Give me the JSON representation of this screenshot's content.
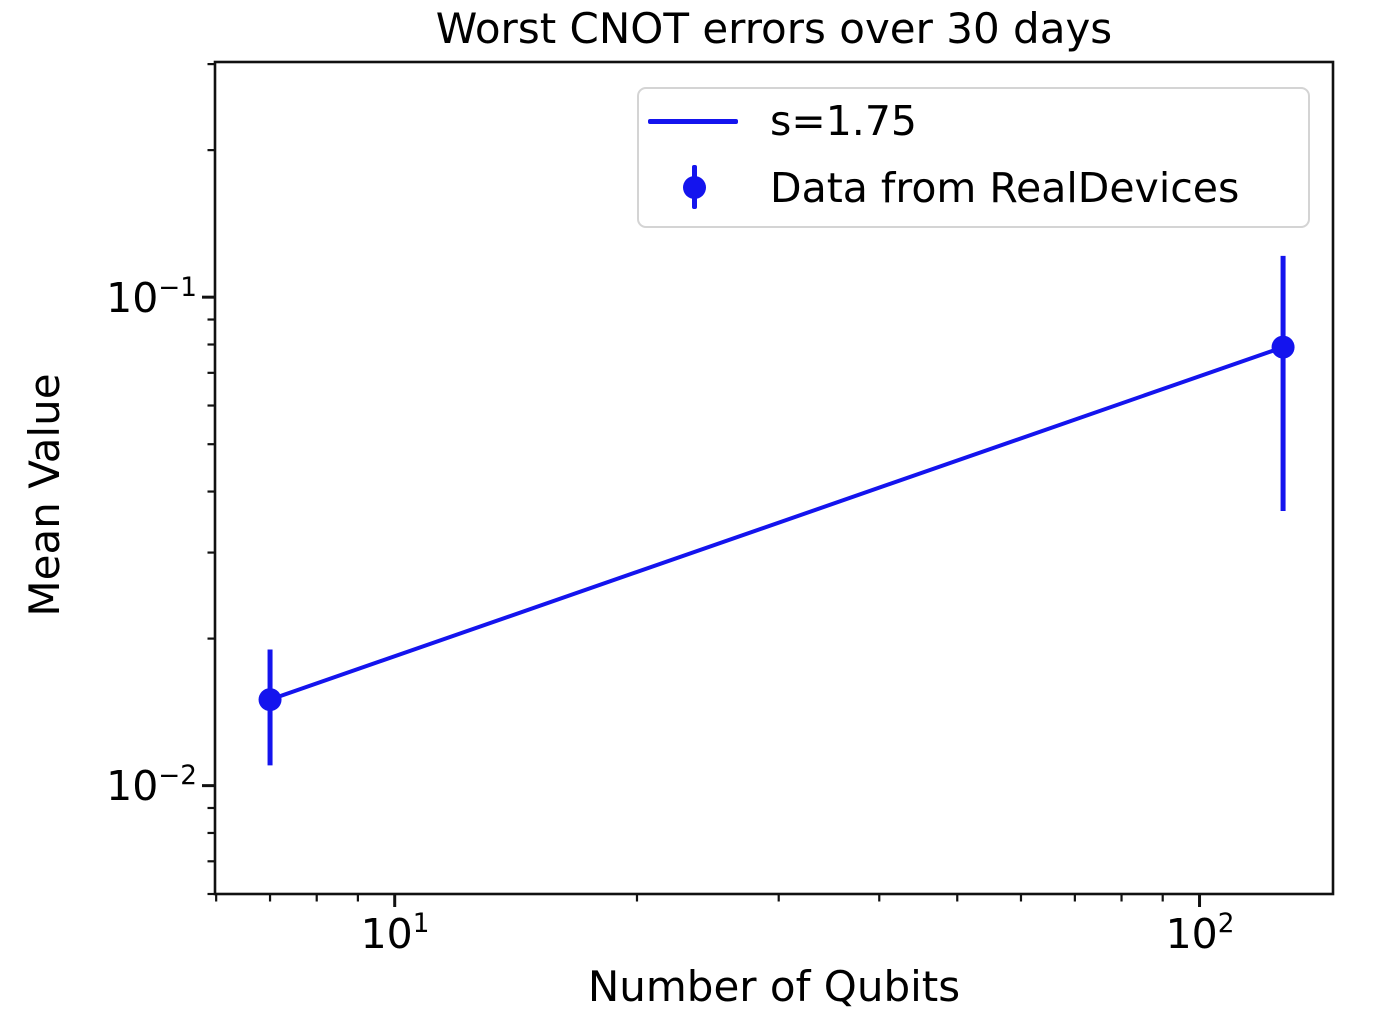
{
  "title": "Worst CNOT errors over 30 days",
  "x_axis": {
    "label": "Number of Qubits",
    "tick_labels": [
      {
        "base": "10",
        "exp": "1"
      },
      {
        "base": "10",
        "exp": "2"
      }
    ]
  },
  "y_axis": {
    "label": "Mean Value",
    "tick_labels": [
      {
        "base": "10",
        "exp": "−1"
      },
      {
        "base": "10",
        "exp": "−2"
      }
    ]
  },
  "legend": {
    "entries": [
      {
        "label": "s=1.75",
        "type": "line"
      },
      {
        "label": "Data from RealDevices",
        "type": "errorbar"
      }
    ],
    "position": "upper right"
  },
  "colors": {
    "series": "#1414ee",
    "axis": "#111111",
    "legend_border": "#d4d4d4"
  },
  "chart_data": {
    "type": "line",
    "title": "Worst CNOT errors over 30 days",
    "xlabel": "Number of Qubits",
    "ylabel": "Mean Value",
    "x_scale": "log",
    "y_scale": "log",
    "xlim": [
      5.98,
      146.5
    ],
    "ylim": [
      0.006,
      0.303
    ],
    "x_major_ticks": [
      10,
      100
    ],
    "y_major_ticks": [
      0.1,
      0.01
    ],
    "grid": false,
    "legend_position": "upper right",
    "series": [
      {
        "name": "s=1.75",
        "type": "line",
        "x": [
          7,
          127
        ],
        "y": [
          0.015,
          0.079
        ]
      },
      {
        "name": "Data from RealDevices",
        "type": "scatter_errorbar",
        "x": [
          7,
          127
        ],
        "y": [
          0.015,
          0.079
        ],
        "yerr": [
          0.004,
          0.0425
        ]
      }
    ]
  }
}
